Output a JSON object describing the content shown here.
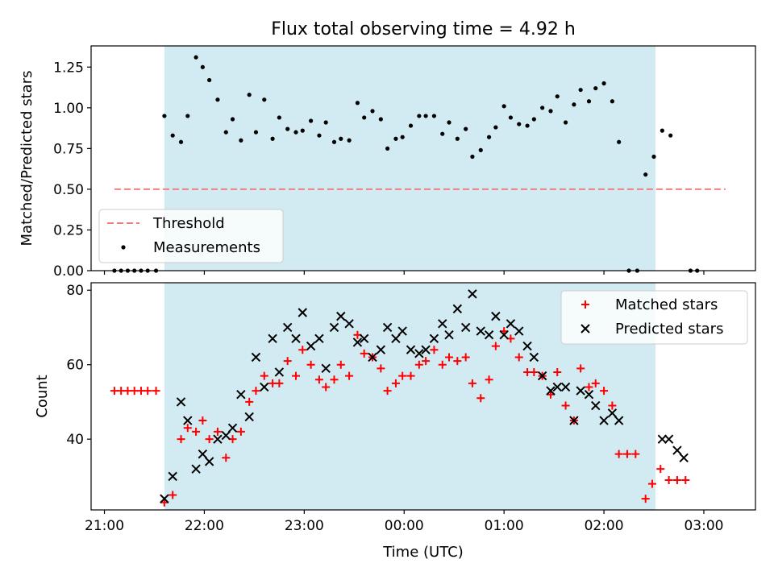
{
  "figure": {
    "title": "Flux total observing time = 4.92 h"
  },
  "chart_data": [
    {
      "type": "line",
      "panel": "top",
      "ylabel": "Matched/Predicted stars",
      "xlabel": "",
      "xlim": [
        "20:52",
        "03:31"
      ],
      "ylim": [
        0,
        1.38
      ],
      "yticks": [
        0.0,
        0.25,
        0.5,
        0.75,
        1.0,
        1.25
      ],
      "ytick_labels": [
        "0.00",
        "0.25",
        "0.50",
        "0.75",
        "1.00",
        "1.25"
      ],
      "grid": false,
      "legend": "lower-left",
      "shaded_interval": {
        "x": [
          "21:36",
          "02:31"
        ],
        "color": "#add8e6"
      },
      "series": [
        {
          "name": "Threshold",
          "style": "dashed",
          "color": "#f08080",
          "points": [
            [
              "21:06",
              0.5
            ],
            [
              "03:13",
              0.5
            ]
          ]
        },
        {
          "name": "Measurements",
          "style": "scatter",
          "color": "#000000",
          "points": [
            [
              "21:06",
              0.0
            ],
            [
              "21:10",
              0.0
            ],
            [
              "21:14",
              0.0
            ],
            [
              "21:18",
              0.0
            ],
            [
              "21:22",
              0.0
            ],
            [
              "21:26",
              0.0
            ],
            [
              "21:31",
              0.0
            ],
            [
              "21:36",
              0.95
            ],
            [
              "21:41",
              0.83
            ],
            [
              "21:46",
              0.79
            ],
            [
              "21:50",
              0.95
            ],
            [
              "21:55",
              1.31
            ],
            [
              "21:59",
              1.25
            ],
            [
              "22:03",
              1.17
            ],
            [
              "22:08",
              1.05
            ],
            [
              "22:13",
              0.85
            ],
            [
              "22:17",
              0.93
            ],
            [
              "22:22",
              0.8
            ],
            [
              "22:27",
              1.08
            ],
            [
              "22:31",
              0.85
            ],
            [
              "22:36",
              1.05
            ],
            [
              "22:41",
              0.81
            ],
            [
              "22:45",
              0.94
            ],
            [
              "22:50",
              0.87
            ],
            [
              "22:55",
              0.85
            ],
            [
              "22:59",
              0.86
            ],
            [
              "23:04",
              0.92
            ],
            [
              "23:09",
              0.83
            ],
            [
              "23:13",
              0.91
            ],
            [
              "23:18",
              0.79
            ],
            [
              "23:22",
              0.81
            ],
            [
              "23:27",
              0.8
            ],
            [
              "23:32",
              1.03
            ],
            [
              "23:36",
              0.94
            ],
            [
              "23:41",
              0.98
            ],
            [
              "23:46",
              0.93
            ],
            [
              "23:50",
              0.75
            ],
            [
              "23:55",
              0.81
            ],
            [
              "23:59",
              0.82
            ],
            [
              "00:04",
              0.89
            ],
            [
              "00:09",
              0.95
            ],
            [
              "00:13",
              0.95
            ],
            [
              "00:18",
              0.95
            ],
            [
              "00:23",
              0.84
            ],
            [
              "00:27",
              0.91
            ],
            [
              "00:32",
              0.81
            ],
            [
              "00:37",
              0.87
            ],
            [
              "00:41",
              0.7
            ],
            [
              "00:46",
              0.74
            ],
            [
              "00:51",
              0.82
            ],
            [
              "00:55",
              0.88
            ],
            [
              "01:00",
              1.01
            ],
            [
              "01:04",
              0.94
            ],
            [
              "01:09",
              0.9
            ],
            [
              "01:14",
              0.89
            ],
            [
              "01:18",
              0.93
            ],
            [
              "01:23",
              1.0
            ],
            [
              "01:28",
              0.98
            ],
            [
              "01:32",
              1.07
            ],
            [
              "01:37",
              0.91
            ],
            [
              "01:42",
              1.02
            ],
            [
              "01:46",
              1.11
            ],
            [
              "01:51",
              1.04
            ],
            [
              "01:55",
              1.12
            ],
            [
              "02:00",
              1.15
            ],
            [
              "02:05",
              1.04
            ],
            [
              "02:09",
              0.79
            ],
            [
              "02:15",
              0.0
            ],
            [
              "02:20",
              0.0
            ],
            [
              "02:25",
              0.59
            ],
            [
              "02:30",
              0.7
            ],
            [
              "02:35",
              0.86
            ],
            [
              "02:40",
              0.83
            ],
            [
              "02:52",
              0.0
            ],
            [
              "02:56",
              0.0
            ]
          ]
        }
      ]
    },
    {
      "type": "scatter",
      "panel": "bottom",
      "ylabel": "Count",
      "xlabel": "Time (UTC)",
      "xlim": [
        "20:52",
        "03:31"
      ],
      "ylim": [
        21,
        82
      ],
      "yticks": [
        40,
        60,
        80
      ],
      "xtick_labels": [
        "21:00",
        "22:00",
        "23:00",
        "00:00",
        "01:00",
        "02:00",
        "03:00"
      ],
      "grid": false,
      "legend": "upper-right",
      "shaded_interval": {
        "x": [
          "21:36",
          "02:31"
        ],
        "color": "#add8e6"
      },
      "series": [
        {
          "name": "Matched stars",
          "marker": "+",
          "color": "#ff0000",
          "points": [
            [
              "21:06",
              53
            ],
            [
              "21:10",
              53
            ],
            [
              "21:14",
              53
            ],
            [
              "21:18",
              53
            ],
            [
              "21:22",
              53
            ],
            [
              "21:26",
              53
            ],
            [
              "21:31",
              53
            ],
            [
              "21:36",
              23
            ],
            [
              "21:41",
              25
            ],
            [
              "21:46",
              40
            ],
            [
              "21:50",
              43
            ],
            [
              "21:55",
              42
            ],
            [
              "21:59",
              45
            ],
            [
              "22:03",
              40
            ],
            [
              "22:08",
              42
            ],
            [
              "22:13",
              35
            ],
            [
              "22:17",
              40
            ],
            [
              "22:22",
              42
            ],
            [
              "22:27",
              50
            ],
            [
              "22:31",
              53
            ],
            [
              "22:36",
              57
            ],
            [
              "22:41",
              55
            ],
            [
              "22:45",
              55
            ],
            [
              "22:50",
              61
            ],
            [
              "22:55",
              57
            ],
            [
              "22:59",
              64
            ],
            [
              "23:04",
              60
            ],
            [
              "23:09",
              56
            ],
            [
              "23:13",
              54
            ],
            [
              "23:18",
              56
            ],
            [
              "23:22",
              60
            ],
            [
              "23:27",
              57
            ],
            [
              "23:32",
              68
            ],
            [
              "23:36",
              63
            ],
            [
              "23:41",
              62
            ],
            [
              "23:46",
              59
            ],
            [
              "23:50",
              53
            ],
            [
              "23:55",
              55
            ],
            [
              "23:59",
              57
            ],
            [
              "00:04",
              57
            ],
            [
              "00:09",
              60
            ],
            [
              "00:13",
              61
            ],
            [
              "00:18",
              64
            ],
            [
              "00:23",
              60
            ],
            [
              "00:27",
              62
            ],
            [
              "00:32",
              61
            ],
            [
              "00:37",
              62
            ],
            [
              "00:41",
              55
            ],
            [
              "00:46",
              51
            ],
            [
              "00:51",
              56
            ],
            [
              "00:55",
              65
            ],
            [
              "01:00",
              69
            ],
            [
              "01:04",
              67
            ],
            [
              "01:09",
              62
            ],
            [
              "01:14",
              58
            ],
            [
              "01:18",
              58
            ],
            [
              "01:23",
              57
            ],
            [
              "01:28",
              52
            ],
            [
              "01:32",
              58
            ],
            [
              "01:37",
              49
            ],
            [
              "01:42",
              45
            ],
            [
              "01:46",
              59
            ],
            [
              "01:51",
              54
            ],
            [
              "01:55",
              55
            ],
            [
              "02:00",
              53
            ],
            [
              "02:05",
              49
            ],
            [
              "02:09",
              36
            ],
            [
              "02:14",
              36
            ],
            [
              "02:19",
              36
            ],
            [
              "02:25",
              24
            ],
            [
              "02:29",
              28
            ],
            [
              "02:34",
              32
            ],
            [
              "02:39",
              29
            ],
            [
              "02:44",
              29
            ],
            [
              "02:49",
              29
            ]
          ]
        },
        {
          "name": "Predicted stars",
          "marker": "x",
          "color": "#000000",
          "points": [
            [
              "21:36",
              24
            ],
            [
              "21:41",
              30
            ],
            [
              "21:46",
              50
            ],
            [
              "21:50",
              45
            ],
            [
              "21:55",
              32
            ],
            [
              "21:59",
              36
            ],
            [
              "22:03",
              34
            ],
            [
              "22:08",
              40
            ],
            [
              "22:13",
              41
            ],
            [
              "22:17",
              43
            ],
            [
              "22:22",
              52
            ],
            [
              "22:27",
              46
            ],
            [
              "22:31",
              62
            ],
            [
              "22:36",
              54
            ],
            [
              "22:41",
              67
            ],
            [
              "22:45",
              58
            ],
            [
              "22:50",
              70
            ],
            [
              "22:55",
              67
            ],
            [
              "22:59",
              74
            ],
            [
              "23:04",
              65
            ],
            [
              "23:09",
              67
            ],
            [
              "23:13",
              59
            ],
            [
              "23:18",
              70
            ],
            [
              "23:22",
              73
            ],
            [
              "23:27",
              71
            ],
            [
              "23:32",
              66
            ],
            [
              "23:36",
              67
            ],
            [
              "23:41",
              62
            ],
            [
              "23:46",
              64
            ],
            [
              "23:50",
              70
            ],
            [
              "23:55",
              67
            ],
            [
              "23:59",
              69
            ],
            [
              "00:04",
              64
            ],
            [
              "00:09",
              63
            ],
            [
              "00:13",
              64
            ],
            [
              "00:18",
              67
            ],
            [
              "00:23",
              71
            ],
            [
              "00:27",
              68
            ],
            [
              "00:32",
              75
            ],
            [
              "00:37",
              70
            ],
            [
              "00:41",
              79
            ],
            [
              "00:46",
              69
            ],
            [
              "00:51",
              68
            ],
            [
              "00:55",
              73
            ],
            [
              "01:00",
              68
            ],
            [
              "01:04",
              71
            ],
            [
              "01:09",
              69
            ],
            [
              "01:14",
              65
            ],
            [
              "01:18",
              62
            ],
            [
              "01:23",
              57
            ],
            [
              "01:28",
              53
            ],
            [
              "01:32",
              54
            ],
            [
              "01:37",
              54
            ],
            [
              "01:42",
              45
            ],
            [
              "01:46",
              53
            ],
            [
              "01:51",
              52
            ],
            [
              "01:55",
              49
            ],
            [
              "02:00",
              45
            ],
            [
              "02:05",
              47
            ],
            [
              "02:09",
              45
            ],
            [
              "02:35",
              40
            ],
            [
              "02:39",
              40
            ],
            [
              "02:44",
              37
            ],
            [
              "02:48",
              35
            ]
          ]
        }
      ]
    }
  ]
}
